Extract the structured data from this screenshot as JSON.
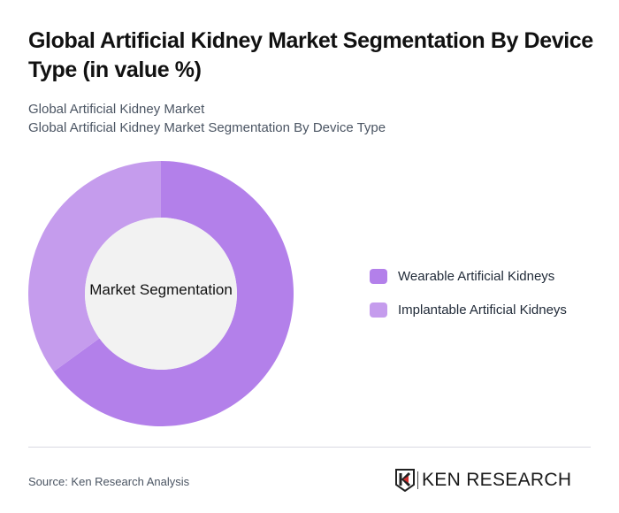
{
  "header": {
    "title": "Global Artificial Kidney Market Segmentation By Device Type (in value %)",
    "subtitle_line1": "Global Artificial Kidney Market",
    "subtitle_line2": "Global Artificial Kidney Market Segmentation By Device Type"
  },
  "footer": {
    "source": "Source: Ken Research Analysis",
    "logo_text": "KEN RESEARCH"
  },
  "colors": {
    "wearable": "#b380ea",
    "implantable": "#c59ced",
    "center": "#f2f2f2"
  },
  "chart_data": {
    "type": "pie",
    "variant": "donut",
    "title": "Global Artificial Kidney Market Segmentation By Device Type (in value %)",
    "center_label": "Market Segmentation",
    "categories": [
      "Wearable Artificial Kidneys",
      "Implantable Artificial Kidneys"
    ],
    "values": [
      65,
      35
    ],
    "values_note": "approximate, estimated from slice angles; no values are printed on the chart",
    "colors": [
      "#b380ea",
      "#c59ced"
    ],
    "legend_position": "right",
    "start_angle_deg": 0,
    "direction": "clockwise"
  }
}
